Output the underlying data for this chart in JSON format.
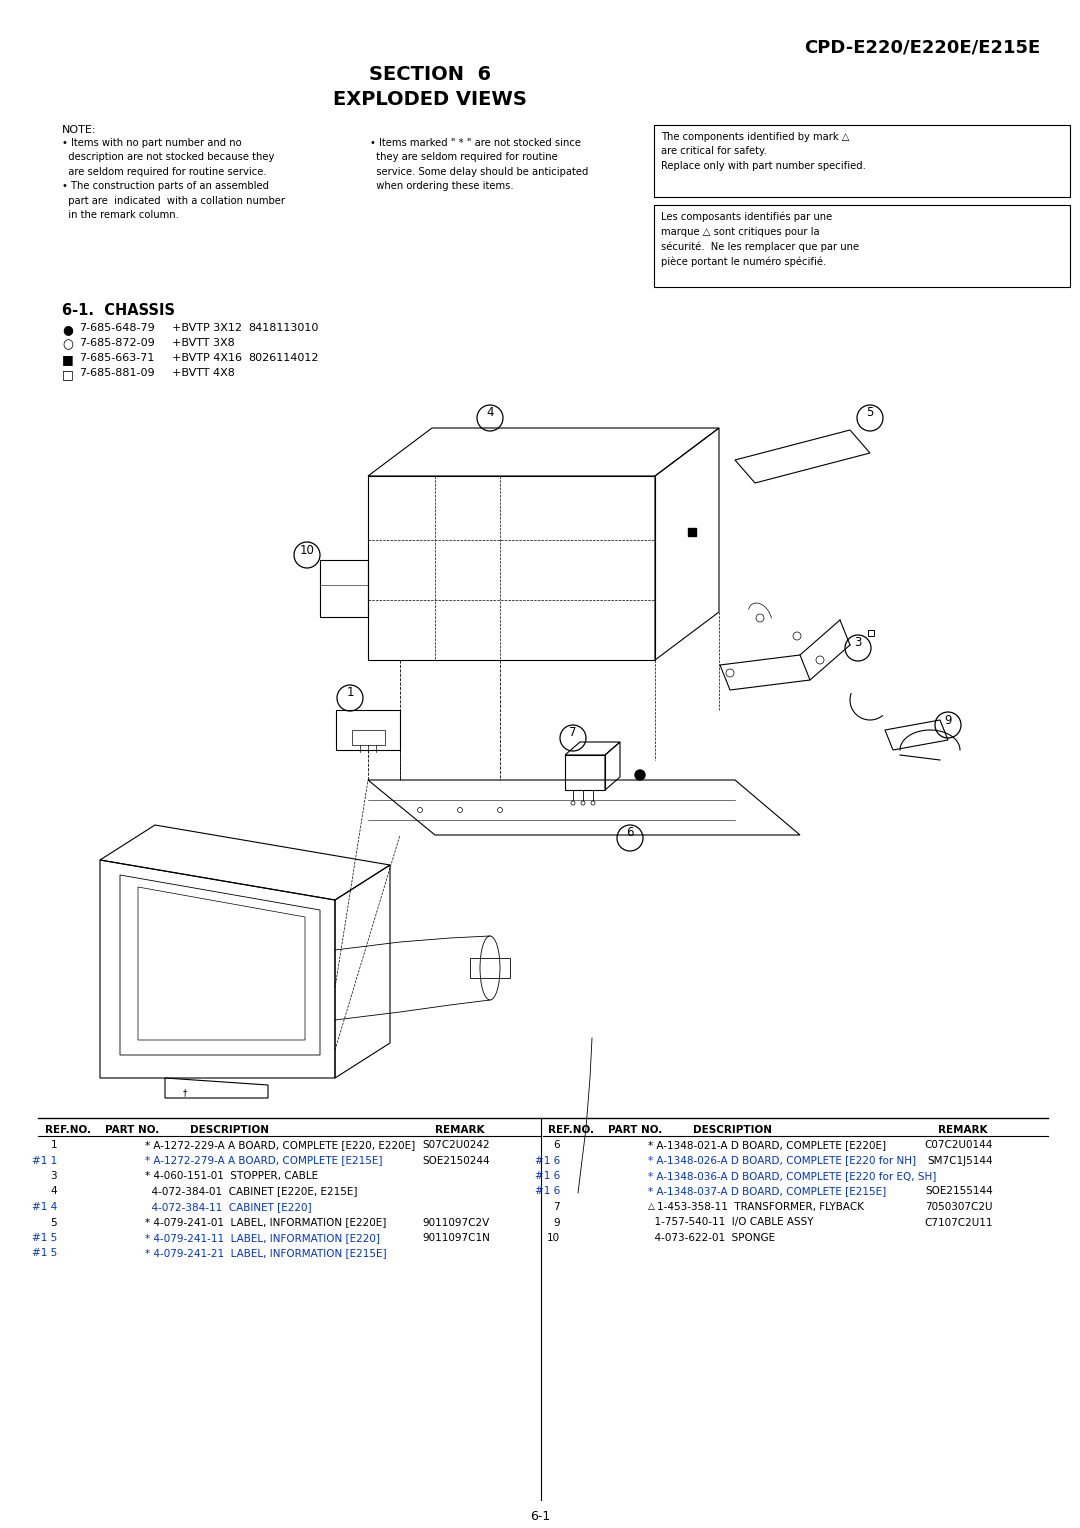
{
  "page_title_left": "SECTION  6",
  "page_title_sub": "EXPLODED VIEWS",
  "page_model": "CPD-E220/E220E/E215E",
  "bg_color": "#ffffff",
  "note_header": "NOTE:",
  "note_col1": "• Items with no part number and no\n  description are not stocked because they\n  are seldom required for routine service.\n• The construction parts of an assembled\n  part are  indicated  with a collation number\n  in the remark column.",
  "note_col2": "• Items marked \" * \" are not stocked since\n  they are seldom required for routine\n  service. Some delay should be anticipated\n  when ordering these items.",
  "safety_box_en": "The components identified by mark △\nare critical for safety.\nReplace only with part number specified.",
  "safety_box_fr": "Les composants identifiés par une\nmarque △ sont critiques pour la\nsécurité.  Ne les remplacer que par une\npièce portant le numéro spécifié.",
  "section_header": "6-1.  CHASSIS",
  "screw_list": [
    {
      "sym": "●",
      "pn": "7-685-648-79",
      "desc": "+BVTP 3X12",
      "remark": "8418113010"
    },
    {
      "sym": "○",
      "pn": "7-685-872-09",
      "desc": "+BVTT 3X8",
      "remark": ""
    },
    {
      "sym": "■",
      "pn": "7-685-663-71",
      "desc": "+BVTP 4X16",
      "remark": "8026114012"
    },
    {
      "sym": "□",
      "pn": "7-685-881-09",
      "desc": "+BVTT 4X8",
      "remark": ""
    }
  ],
  "parts_left": [
    {
      "ref": "1",
      "hash": "",
      "color": "black",
      "part": "* A-1272-229-A A BOARD, COMPLETE [E220, E220E]",
      "remark": "S07C2U0242"
    },
    {
      "ref": "#1 1",
      "hash": "",
      "color": "blue",
      "part": "* A-1272-279-A A BOARD, COMPLETE [E215E]",
      "remark": "SOE2150244"
    },
    {
      "ref": "3",
      "hash": "",
      "color": "black",
      "part": "* 4-060-151-01  STOPPER, CABLE",
      "remark": ""
    },
    {
      "ref": "4",
      "hash": "",
      "color": "black",
      "part": "  4-072-384-01  CABINET [E220E, E215E]",
      "remark": ""
    },
    {
      "ref": "#1 4",
      "hash": "",
      "color": "blue",
      "part": "  4-072-384-11  CABINET [E220]",
      "remark": ""
    },
    {
      "ref": "5",
      "hash": "",
      "color": "black",
      "part": "* 4-079-241-01  LABEL, INFORMATION [E220E]",
      "remark": "9011097C2V"
    },
    {
      "ref": "#1 5",
      "hash": "",
      "color": "blue",
      "part": "* 4-079-241-11  LABEL, INFORMATION [E220]",
      "remark": "9011097C1N"
    },
    {
      "ref": "#1 5",
      "hash": "",
      "color": "blue",
      "part": "* 4-079-241-21  LABEL, INFORMATION [E215E]",
      "remark": ""
    }
  ],
  "parts_right": [
    {
      "ref": "6",
      "hash": "",
      "color": "black",
      "part": "* A-1348-021-A D BOARD, COMPLETE [E220E]",
      "remark": "C07C2U0144"
    },
    {
      "ref": "#1 6",
      "hash": "",
      "color": "blue",
      "part": "* A-1348-026-A D BOARD, COMPLETE [E220 for NH]",
      "remark": "SM7C1J5144"
    },
    {
      "ref": "#1 6",
      "hash": "",
      "color": "blue",
      "part": "* A-1348-036-A D BOARD, COMPLETE [E220 for EQ, SH]",
      "remark": ""
    },
    {
      "ref": "#1 6",
      "hash": "",
      "color": "blue",
      "part": "* A-1348-037-A D BOARD, COMPLETE [E215E]",
      "remark": "SOE2155144"
    },
    {
      "ref": "7",
      "hash": "△",
      "color": "black",
      "part": "1-453-358-11  TRANSFORMER, FLYBACK",
      "remark": "7050307C2U"
    },
    {
      "ref": "9",
      "hash": "",
      "color": "black",
      "part": "  1-757-540-11  I/O CABLE ASSY",
      "remark": "C7107C2U11"
    },
    {
      "ref": "10",
      "hash": "",
      "color": "black",
      "part": "  4-073-622-01  SPONGE",
      "remark": ""
    }
  ],
  "page_num": "6-1"
}
